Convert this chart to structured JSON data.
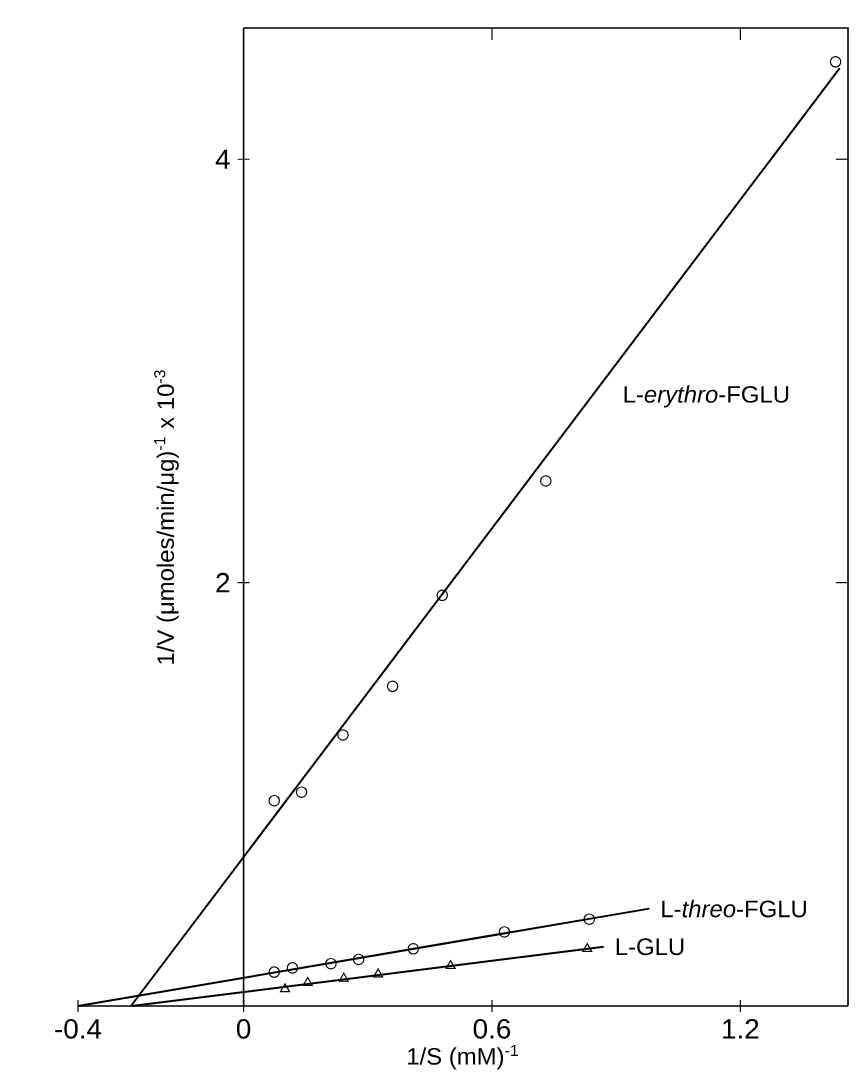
{
  "chart_data": {
    "type": "scatter",
    "xlabel": "1/S (mM)$^{-1}$",
    "ylabel": "1/V (μmoles/min/μg)$^{-1}$ x 10$^{-3}$",
    "xlim": [
      -0.4,
      1.46
    ],
    "ylim": [
      0,
      4.62
    ],
    "xticks": [
      -0.4,
      0,
      0.6,
      1.2
    ],
    "yticks": [
      2,
      4
    ],
    "series": [
      {
        "marker": "circle",
        "color": "#000000",
        "x": [
          0.074,
          0.14,
          0.24,
          0.36,
          0.48,
          0.73,
          1.43
        ],
        "values": [
          0.97,
          1.01,
          1.28,
          1.51,
          1.94,
          2.48,
          4.46
        ]
      },
      {
        "marker": "circle",
        "color": "#000000",
        "x": [
          0.074,
          0.118,
          0.211,
          0.278,
          0.41,
          0.63,
          0.835
        ],
        "values": [
          0.16,
          0.18,
          0.2,
          0.22,
          0.27,
          0.35,
          0.41
        ]
      },
      {
        "marker": "triangle",
        "color": "#000000",
        "x": [
          0.1,
          0.155,
          0.242,
          0.325,
          0.5,
          0.83
        ],
        "values": [
          0.08,
          0.11,
          0.13,
          0.15,
          0.19,
          0.27
        ]
      },
      {
        "type": "line",
        "name": "L-*erythro*-FGLU",
        "marker": "none",
        "color": "#000000",
        "x": [
          -0.272,
          1.44
        ],
        "values": [
          0,
          4.43
        ]
      },
      {
        "type": "line",
        "name": "L-*threo*-FGLU",
        "marker": "none",
        "color": "#000000",
        "x": [
          -0.4,
          0.98
        ],
        "values": [
          0,
          0.46
        ]
      },
      {
        "type": "line",
        "name": "L-GLU",
        "marker": "none",
        "color": "#000000",
        "x": [
          -0.27,
          0.87
        ],
        "values": [
          0,
          0.28
        ]
      }
    ]
  }
}
